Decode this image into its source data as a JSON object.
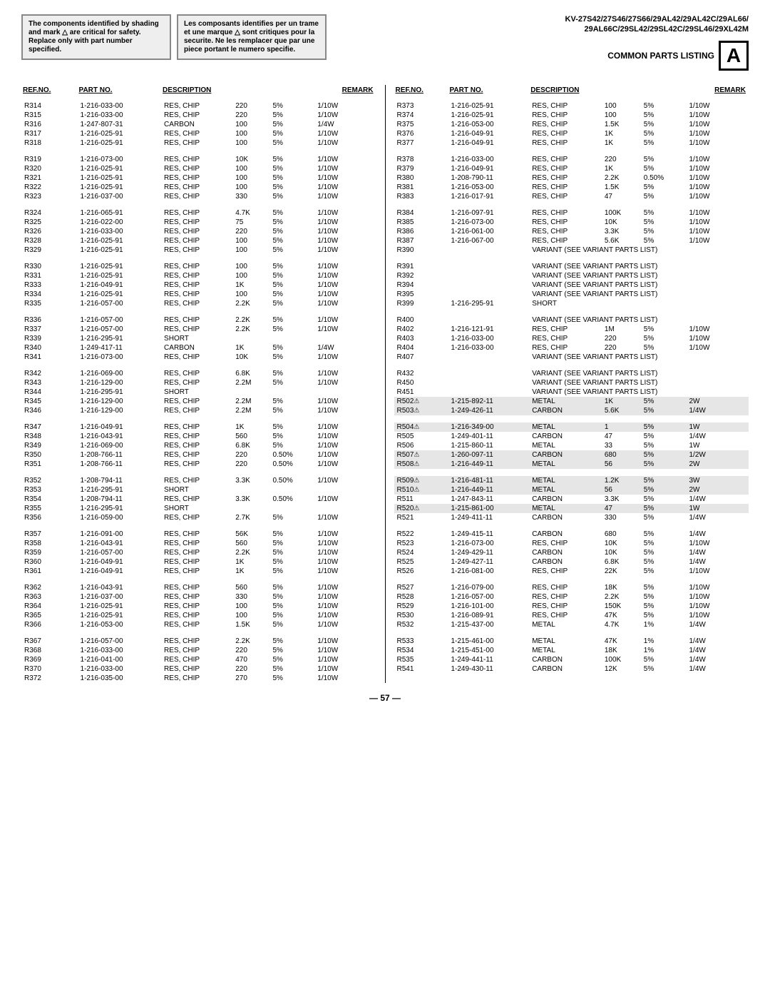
{
  "header": {
    "warning_en": "The components identified by shading and mark △ are critical for safety. Replace only with part number specified.",
    "warning_fr": "Les composants identifies per un trame et une marque △ sont critiques pour la securite. Ne les remplacer que par une piece portant le numero specifie.",
    "models_line1": "KV-27S42/27S46/27S66/29AL42/29AL42C/29AL66/",
    "models_line2": "29AL66C/29SL42/29SL42C/29SL46/29XL42M",
    "section_title": "COMMON PARTS LISTING",
    "big_letter": "A"
  },
  "columns_header": {
    "refno": "REF.NO.",
    "partno": "PART NO.",
    "description": "DESCRIPTION",
    "remark": "REMARK"
  },
  "left_rows": [
    {
      "ref": "R314",
      "part": "1-216-033-00",
      "desc": "RES, CHIP",
      "v": "220",
      "tol": "5%",
      "w": "1/10W"
    },
    {
      "ref": "R315",
      "part": "1-216-033-00",
      "desc": "RES, CHIP",
      "v": "220",
      "tol": "5%",
      "w": "1/10W"
    },
    {
      "ref": "R316",
      "part": "1-247-807-31",
      "desc": "CARBON",
      "v": "100",
      "tol": "5%",
      "w": "1/4W"
    },
    {
      "ref": "R317",
      "part": "1-216-025-91",
      "desc": "RES, CHIP",
      "v": "100",
      "tol": "5%",
      "w": "1/10W"
    },
    {
      "ref": "R318",
      "part": "1-216-025-91",
      "desc": "RES, CHIP",
      "v": "100",
      "tol": "5%",
      "w": "1/10W"
    },
    {
      "spacer": true
    },
    {
      "ref": "R319",
      "part": "1-216-073-00",
      "desc": "RES, CHIP",
      "v": "10K",
      "tol": "5%",
      "w": "1/10W"
    },
    {
      "ref": "R320",
      "part": "1-216-025-91",
      "desc": "RES, CHIP",
      "v": "100",
      "tol": "5%",
      "w": "1/10W"
    },
    {
      "ref": "R321",
      "part": "1-216-025-91",
      "desc": "RES, CHIP",
      "v": "100",
      "tol": "5%",
      "w": "1/10W"
    },
    {
      "ref": "R322",
      "part": "1-216-025-91",
      "desc": "RES, CHIP",
      "v": "100",
      "tol": "5%",
      "w": "1/10W"
    },
    {
      "ref": "R323",
      "part": "1-216-037-00",
      "desc": "RES, CHIP",
      "v": "330",
      "tol": "5%",
      "w": "1/10W"
    },
    {
      "spacer": true
    },
    {
      "ref": "R324",
      "part": "1-216-065-91",
      "desc": "RES, CHIP",
      "v": "4.7K",
      "tol": "5%",
      "w": "1/10W"
    },
    {
      "ref": "R325",
      "part": "1-216-022-00",
      "desc": "RES, CHIP",
      "v": "75",
      "tol": "5%",
      "w": "1/10W"
    },
    {
      "ref": "R326",
      "part": "1-216-033-00",
      "desc": "RES, CHIP",
      "v": "220",
      "tol": "5%",
      "w": "1/10W"
    },
    {
      "ref": "R328",
      "part": "1-216-025-91",
      "desc": "RES, CHIP",
      "v": "100",
      "tol": "5%",
      "w": "1/10W"
    },
    {
      "ref": "R329",
      "part": "1-216-025-91",
      "desc": "RES, CHIP",
      "v": "100",
      "tol": "5%",
      "w": "1/10W"
    },
    {
      "spacer": true
    },
    {
      "ref": "R330",
      "part": "1-216-025-91",
      "desc": "RES, CHIP",
      "v": "100",
      "tol": "5%",
      "w": "1/10W"
    },
    {
      "ref": "R331",
      "part": "1-216-025-91",
      "desc": "RES, CHIP",
      "v": "100",
      "tol": "5%",
      "w": "1/10W"
    },
    {
      "ref": "R333",
      "part": "1-216-049-91",
      "desc": "RES, CHIP",
      "v": "1K",
      "tol": "5%",
      "w": "1/10W"
    },
    {
      "ref": "R334",
      "part": "1-216-025-91",
      "desc": "RES, CHIP",
      "v": "100",
      "tol": "5%",
      "w": "1/10W"
    },
    {
      "ref": "R335",
      "part": "1-216-057-00",
      "desc": "RES, CHIP",
      "v": "2.2K",
      "tol": "5%",
      "w": "1/10W"
    },
    {
      "spacer": true
    },
    {
      "ref": "R336",
      "part": "1-216-057-00",
      "desc": "RES, CHIP",
      "v": "2.2K",
      "tol": "5%",
      "w": "1/10W"
    },
    {
      "ref": "R337",
      "part": "1-216-057-00",
      "desc": "RES, CHIP",
      "v": "2.2K",
      "tol": "5%",
      "w": "1/10W"
    },
    {
      "ref": "R339",
      "part": "1-216-295-91",
      "desc": "SHORT",
      "v": "",
      "tol": "",
      "w": ""
    },
    {
      "ref": "R340",
      "part": "1-249-417-11",
      "desc": "CARBON",
      "v": "1K",
      "tol": "5%",
      "w": "1/4W"
    },
    {
      "ref": "R341",
      "part": "1-216-073-00",
      "desc": "RES, CHIP",
      "v": "10K",
      "tol": "5%",
      "w": "1/10W"
    },
    {
      "spacer": true
    },
    {
      "ref": "R342",
      "part": "1-216-069-00",
      "desc": "RES, CHIP",
      "v": "6.8K",
      "tol": "5%",
      "w": "1/10W"
    },
    {
      "ref": "R343",
      "part": "1-216-129-00",
      "desc": "RES, CHIP",
      "v": "2.2M",
      "tol": "5%",
      "w": "1/10W"
    },
    {
      "ref": "R344",
      "part": "1-216-295-91",
      "desc": "SHORT",
      "v": "",
      "tol": "",
      "w": ""
    },
    {
      "ref": "R345",
      "part": "1-216-129-00",
      "desc": "RES, CHIP",
      "v": "2.2M",
      "tol": "5%",
      "w": "1/10W"
    },
    {
      "ref": "R346",
      "part": "1-216-129-00",
      "desc": "RES, CHIP",
      "v": "2.2M",
      "tol": "5%",
      "w": "1/10W"
    },
    {
      "spacer": true
    },
    {
      "ref": "R347",
      "part": "1-216-049-91",
      "desc": "RES, CHIP",
      "v": "1K",
      "tol": "5%",
      "w": "1/10W"
    },
    {
      "ref": "R348",
      "part": "1-216-043-91",
      "desc": "RES, CHIP",
      "v": "560",
      "tol": "5%",
      "w": "1/10W"
    },
    {
      "ref": "R349",
      "part": "1-216-069-00",
      "desc": "RES, CHIP",
      "v": "6.8K",
      "tol": "5%",
      "w": "1/10W"
    },
    {
      "ref": "R350",
      "part": "1-208-766-11",
      "desc": "RES, CHIP",
      "v": "220",
      "tol": "0.50%",
      "w": "1/10W"
    },
    {
      "ref": "R351",
      "part": "1-208-766-11",
      "desc": "RES, CHIP",
      "v": "220",
      "tol": "0.50%",
      "w": "1/10W"
    },
    {
      "spacer": true
    },
    {
      "ref": "R352",
      "part": "1-208-794-11",
      "desc": "RES, CHIP",
      "v": "3.3K",
      "tol": "0.50%",
      "w": "1/10W"
    },
    {
      "ref": "R353",
      "part": "1-216-295-91",
      "desc": "SHORT",
      "v": "",
      "tol": "",
      "w": ""
    },
    {
      "ref": "R354",
      "part": "1-208-794-11",
      "desc": "RES, CHIP",
      "v": "3.3K",
      "tol": "0.50%",
      "w": "1/10W"
    },
    {
      "ref": "R355",
      "part": "1-216-295-91",
      "desc": "SHORT",
      "v": "",
      "tol": "",
      "w": ""
    },
    {
      "ref": "R356",
      "part": "1-216-059-00",
      "desc": "RES, CHIP",
      "v": "2.7K",
      "tol": "5%",
      "w": "1/10W"
    },
    {
      "spacer": true
    },
    {
      "ref": "R357",
      "part": "1-216-091-00",
      "desc": "RES, CHIP",
      "v": "56K",
      "tol": "5%",
      "w": "1/10W"
    },
    {
      "ref": "R358",
      "part": "1-216-043-91",
      "desc": "RES, CHIP",
      "v": "560",
      "tol": "5%",
      "w": "1/10W"
    },
    {
      "ref": "R359",
      "part": "1-216-057-00",
      "desc": "RES, CHIP",
      "v": "2.2K",
      "tol": "5%",
      "w": "1/10W"
    },
    {
      "ref": "R360",
      "part": "1-216-049-91",
      "desc": "RES, CHIP",
      "v": "1K",
      "tol": "5%",
      "w": "1/10W"
    },
    {
      "ref": "R361",
      "part": "1-216-049-91",
      "desc": "RES, CHIP",
      "v": "1K",
      "tol": "5%",
      "w": "1/10W"
    },
    {
      "spacer": true
    },
    {
      "ref": "R362",
      "part": "1-216-043-91",
      "desc": "RES, CHIP",
      "v": "560",
      "tol": "5%",
      "w": "1/10W"
    },
    {
      "ref": "R363",
      "part": "1-216-037-00",
      "desc": "RES, CHIP",
      "v": "330",
      "tol": "5%",
      "w": "1/10W"
    },
    {
      "ref": "R364",
      "part": "1-216-025-91",
      "desc": "RES, CHIP",
      "v": "100",
      "tol": "5%",
      "w": "1/10W"
    },
    {
      "ref": "R365",
      "part": "1-216-025-91",
      "desc": "RES, CHIP",
      "v": "100",
      "tol": "5%",
      "w": "1/10W"
    },
    {
      "ref": "R366",
      "part": "1-216-053-00",
      "desc": "RES, CHIP",
      "v": "1.5K",
      "tol": "5%",
      "w": "1/10W"
    },
    {
      "spacer": true
    },
    {
      "ref": "R367",
      "part": "1-216-057-00",
      "desc": "RES, CHIP",
      "v": "2.2K",
      "tol": "5%",
      "w": "1/10W"
    },
    {
      "ref": "R368",
      "part": "1-216-033-00",
      "desc": "RES, CHIP",
      "v": "220",
      "tol": "5%",
      "w": "1/10W"
    },
    {
      "ref": "R369",
      "part": "1-216-041-00",
      "desc": "RES, CHIP",
      "v": "470",
      "tol": "5%",
      "w": "1/10W"
    },
    {
      "ref": "R370",
      "part": "1-216-033-00",
      "desc": "RES, CHIP",
      "v": "220",
      "tol": "5%",
      "w": "1/10W"
    },
    {
      "ref": "R372",
      "part": "1-216-035-00",
      "desc": "RES, CHIP",
      "v": "270",
      "tol": "5%",
      "w": "1/10W"
    }
  ],
  "right_rows": [
    {
      "ref": "R373",
      "part": "1-216-025-91",
      "desc": "RES, CHIP",
      "v": "100",
      "tol": "5%",
      "w": "1/10W"
    },
    {
      "ref": "R374",
      "part": "1-216-025-91",
      "desc": "RES, CHIP",
      "v": "100",
      "tol": "5%",
      "w": "1/10W"
    },
    {
      "ref": "R375",
      "part": "1-216-053-00",
      "desc": "RES, CHIP",
      "v": "1.5K",
      "tol": "5%",
      "w": "1/10W"
    },
    {
      "ref": "R376",
      "part": "1-216-049-91",
      "desc": "RES, CHIP",
      "v": "1K",
      "tol": "5%",
      "w": "1/10W"
    },
    {
      "ref": "R377",
      "part": "1-216-049-91",
      "desc": "RES, CHIP",
      "v": "1K",
      "tol": "5%",
      "w": "1/10W"
    },
    {
      "spacer": true
    },
    {
      "ref": "R378",
      "part": "1-216-033-00",
      "desc": "RES, CHIP",
      "v": "220",
      "tol": "5%",
      "w": "1/10W"
    },
    {
      "ref": "R379",
      "part": "1-216-049-91",
      "desc": "RES, CHIP",
      "v": "1K",
      "tol": "5%",
      "w": "1/10W"
    },
    {
      "ref": "R380",
      "part": "1-208-790-11",
      "desc": "RES, CHIP",
      "v": "2.2K",
      "tol": "0.50%",
      "w": "1/10W"
    },
    {
      "ref": "R381",
      "part": "1-216-053-00",
      "desc": "RES, CHIP",
      "v": "1.5K",
      "tol": "5%",
      "w": "1/10W"
    },
    {
      "ref": "R383",
      "part": "1-216-017-91",
      "desc": "RES, CHIP",
      "v": "47",
      "tol": "5%",
      "w": "1/10W"
    },
    {
      "spacer": true
    },
    {
      "ref": "R384",
      "part": "1-216-097-91",
      "desc": "RES, CHIP",
      "v": "100K",
      "tol": "5%",
      "w": "1/10W"
    },
    {
      "ref": "R385",
      "part": "1-216-073-00",
      "desc": "RES, CHIP",
      "v": "10K",
      "tol": "5%",
      "w": "1/10W"
    },
    {
      "ref": "R386",
      "part": "1-216-061-00",
      "desc": "RES, CHIP",
      "v": "3.3K",
      "tol": "5%",
      "w": "1/10W"
    },
    {
      "ref": "R387",
      "part": "1-216-067-00",
      "desc": "RES, CHIP",
      "v": "5.6K",
      "tol": "5%",
      "w": "1/10W"
    },
    {
      "ref": "R390",
      "part": "",
      "desc": "VARIANT (SEE VARIANT PARTS LIST)",
      "variant": true
    },
    {
      "spacer": true
    },
    {
      "ref": "R391",
      "part": "",
      "desc": "VARIANT (SEE VARIANT PARTS LIST)",
      "variant": true
    },
    {
      "ref": "R392",
      "part": "",
      "desc": "VARIANT (SEE VARIANT PARTS LIST)",
      "variant": true
    },
    {
      "ref": "R394",
      "part": "",
      "desc": "VARIANT (SEE VARIANT PARTS LIST)",
      "variant": true
    },
    {
      "ref": "R395",
      "part": "",
      "desc": "VARIANT (SEE VARIANT PARTS LIST)",
      "variant": true
    },
    {
      "ref": "R399",
      "part": "1-216-295-91",
      "desc": "SHORT",
      "v": "",
      "tol": "",
      "w": ""
    },
    {
      "spacer": true
    },
    {
      "ref": "R400",
      "part": "",
      "desc": "VARIANT (SEE VARIANT PARTS LIST)",
      "variant": true
    },
    {
      "ref": "R402",
      "part": "1-216-121-91",
      "desc": "RES, CHIP",
      "v": "1M",
      "tol": "5%",
      "w": "1/10W"
    },
    {
      "ref": "R403",
      "part": "1-216-033-00",
      "desc": "RES, CHIP",
      "v": "220",
      "tol": "5%",
      "w": "1/10W"
    },
    {
      "ref": "R404",
      "part": "1-216-033-00",
      "desc": "RES, CHIP",
      "v": "220",
      "tol": "5%",
      "w": "1/10W"
    },
    {
      "ref": "R407",
      "part": "",
      "desc": "VARIANT (SEE VARIANT PARTS LIST)",
      "variant": true
    },
    {
      "spacer": true
    },
    {
      "ref": "R432",
      "part": "",
      "desc": "VARIANT (SEE VARIANT PARTS LIST)",
      "variant": true
    },
    {
      "ref": "R450",
      "part": "",
      "desc": "VARIANT (SEE VARIANT PARTS LIST)",
      "variant": true
    },
    {
      "ref": "R451",
      "part": "",
      "desc": "VARIANT (SEE VARIANT PARTS LIST)",
      "variant": true
    },
    {
      "ref": "R502",
      "tri": true,
      "shaded": true,
      "part": "1-215-892-11",
      "desc": "METAL",
      "v": "1K",
      "tol": "5%",
      "w": "2W"
    },
    {
      "ref": "R503",
      "tri": true,
      "shaded": true,
      "part": "1-249-426-11",
      "desc": "CARBON",
      "v": "5.6K",
      "tol": "5%",
      "w": "1/4W"
    },
    {
      "spacer": true
    },
    {
      "ref": "R504",
      "tri": true,
      "shaded": true,
      "part": "1-216-349-00",
      "desc": "METAL",
      "v": "1",
      "tol": "5%",
      "w": "1W"
    },
    {
      "ref": "R505",
      "part": "1-249-401-11",
      "desc": "CARBON",
      "v": "47",
      "tol": "5%",
      "w": "1/4W"
    },
    {
      "ref": "R506",
      "part": "1-215-860-11",
      "desc": "METAL",
      "v": "33",
      "tol": "5%",
      "w": "1W"
    },
    {
      "ref": "R507",
      "tri": true,
      "shaded": true,
      "part": "1-260-097-11",
      "desc": "CARBON",
      "v": "680",
      "tol": "5%",
      "w": "1/2W"
    },
    {
      "ref": "R508",
      "tri": true,
      "shaded": true,
      "part": "1-216-449-11",
      "desc": "METAL",
      "v": "56",
      "tol": "5%",
      "w": "2W"
    },
    {
      "spacer": true
    },
    {
      "ref": "R509",
      "tri": true,
      "shaded": true,
      "part": "1-216-481-11",
      "desc": "METAL",
      "v": "1.2K",
      "tol": "5%",
      "w": "3W"
    },
    {
      "ref": "R510",
      "tri": true,
      "shaded": true,
      "part": "1-216-449-11",
      "desc": "METAL",
      "v": "56",
      "tol": "5%",
      "w": "2W"
    },
    {
      "ref": "R511",
      "part": "1-247-843-11",
      "desc": "CARBON",
      "v": "3.3K",
      "tol": "5%",
      "w": "1/4W"
    },
    {
      "ref": "R520",
      "tri": true,
      "shaded": true,
      "part": "1-215-861-00",
      "desc": "METAL",
      "v": "47",
      "tol": "5%",
      "w": "1W"
    },
    {
      "ref": "R521",
      "part": "1-249-411-11",
      "desc": "CARBON",
      "v": "330",
      "tol": "5%",
      "w": "1/4W"
    },
    {
      "spacer": true
    },
    {
      "ref": "R522",
      "part": "1-249-415-11",
      "desc": "CARBON",
      "v": "680",
      "tol": "5%",
      "w": "1/4W"
    },
    {
      "ref": "R523",
      "part": "1-216-073-00",
      "desc": "RES, CHIP",
      "v": "10K",
      "tol": "5%",
      "w": "1/10W"
    },
    {
      "ref": "R524",
      "part": "1-249-429-11",
      "desc": "CARBON",
      "v": "10K",
      "tol": "5%",
      "w": "1/4W"
    },
    {
      "ref": "R525",
      "part": "1-249-427-11",
      "desc": "CARBON",
      "v": "6.8K",
      "tol": "5%",
      "w": "1/4W"
    },
    {
      "ref": "R526",
      "part": "1-216-081-00",
      "desc": "RES, CHIP",
      "v": "22K",
      "tol": "5%",
      "w": "1/10W"
    },
    {
      "spacer": true
    },
    {
      "ref": "R527",
      "part": "1-216-079-00",
      "desc": "RES, CHIP",
      "v": "18K",
      "tol": "5%",
      "w": "1/10W"
    },
    {
      "ref": "R528",
      "part": "1-216-057-00",
      "desc": "RES, CHIP",
      "v": "2.2K",
      "tol": "5%",
      "w": "1/10W"
    },
    {
      "ref": "R529",
      "part": "1-216-101-00",
      "desc": "RES, CHIP",
      "v": "150K",
      "tol": "5%",
      "w": "1/10W"
    },
    {
      "ref": "R530",
      "part": "1-216-089-91",
      "desc": "RES, CHIP",
      "v": "47K",
      "tol": "5%",
      "w": "1/10W"
    },
    {
      "ref": "R532",
      "part": "1-215-437-00",
      "desc": "METAL",
      "v": "4.7K",
      "tol": "1%",
      "w": "1/4W"
    },
    {
      "spacer": true
    },
    {
      "ref": "R533",
      "part": "1-215-461-00",
      "desc": "METAL",
      "v": "47K",
      "tol": "1%",
      "w": "1/4W"
    },
    {
      "ref": "R534",
      "part": "1-215-451-00",
      "desc": "METAL",
      "v": "18K",
      "tol": "1%",
      "w": "1/4W"
    },
    {
      "ref": "R535",
      "part": "1-249-441-11",
      "desc": "CARBON",
      "v": "100K",
      "tol": "5%",
      "w": "1/4W"
    },
    {
      "ref": "R541",
      "part": "1-249-430-11",
      "desc": "CARBON",
      "v": "12K",
      "tol": "5%",
      "w": "1/4W"
    }
  ],
  "page_number": "— 57 —"
}
